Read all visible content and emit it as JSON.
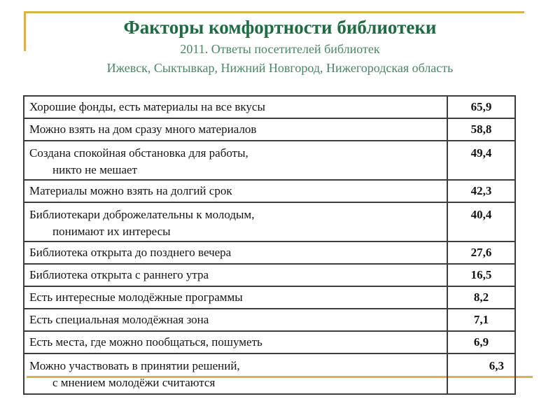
{
  "slide": {
    "title": "Факторы комфортности библиотеки",
    "subtitle_year": "2011. Ответы посетителей библиотек",
    "subtitle_cities": "Ижевск, Сыктывкар, Нижний Новгород, Нижегородская область"
  },
  "colors": {
    "title_green": "#1e6b44",
    "subtitle_green": "#4a8565",
    "accent_gold": "#d9b24c",
    "table_border": "#3d3d3d",
    "text_color": "#141414",
    "background": "#ffffff"
  },
  "table": {
    "rows": [
      {
        "label": "Хорошие фонды, есть материалы на все вкусы",
        "label2": "",
        "value": "65,9"
      },
      {
        "label": "Можно взять на дом сразу много материалов",
        "label2": "",
        "value": "58,8"
      },
      {
        "label": "Создана спокойная обстановка для работы,",
        "label2": "никто не мешает",
        "value": "49,4"
      },
      {
        "label": "Материалы можно взять на долгий срок",
        "label2": "",
        "value": "42,3"
      },
      {
        "label": "Библиотекари доброжелательны к молодым,",
        "label2": "понимают их интересы",
        "value": "40,4"
      },
      {
        "label": "Библиотека открыта до позднего вечера",
        "label2": "",
        "value": "27,6"
      },
      {
        "label": "Библиотека открыта с раннего утра",
        "label2": "",
        "value": "16,5"
      },
      {
        "label": "Есть интересные молодёжные программы",
        "label2": "",
        "value": "8,2"
      },
      {
        "label": "Есть специальная молодёжная зона",
        "label2": "",
        "value": "7,1"
      },
      {
        "label": "Есть места, где можно пообщаться, пошуметь",
        "label2": "",
        "value": "6,9"
      },
      {
        "label": "Можно участвовать в принятии решений,",
        "label2": "с мнением молодёжи считаются",
        "value": "6,3"
      }
    ]
  }
}
